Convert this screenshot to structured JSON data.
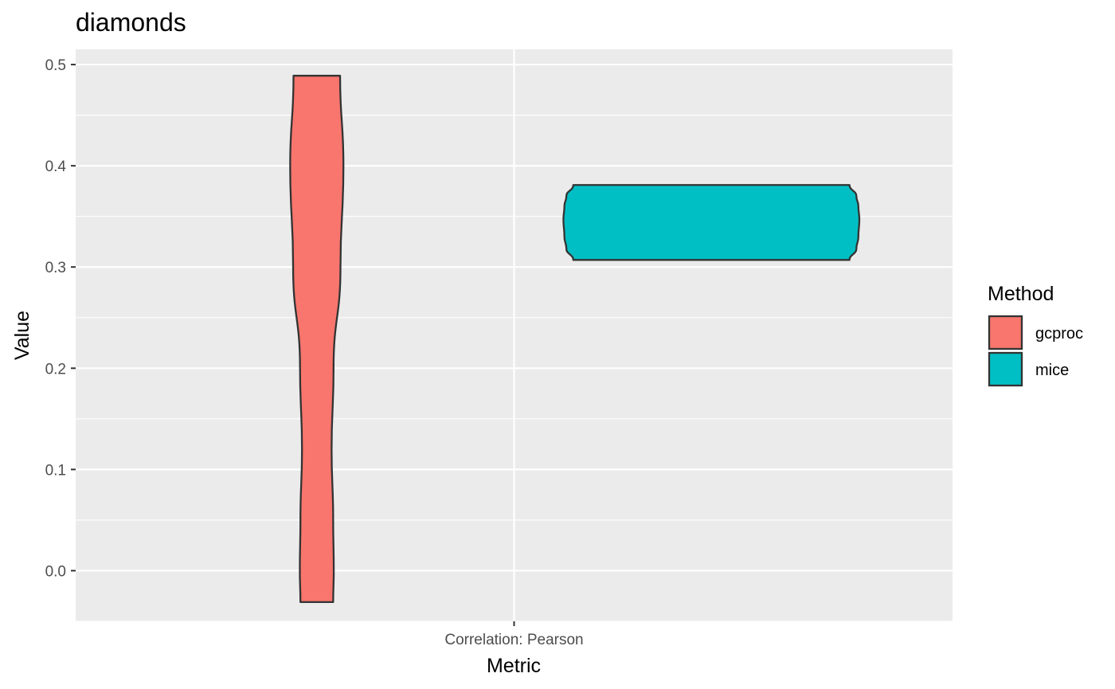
{
  "chart_data": {
    "type": "violin",
    "title": "diamonds",
    "xlabel": "Metric",
    "ylabel": "Value",
    "categories": [
      "Correlation: Pearson"
    ],
    "ylim": [
      -0.05,
      0.515
    ],
    "yticks": [
      "0.0",
      "0.1",
      "0.2",
      "0.3",
      "0.4",
      "0.5"
    ],
    "grid": true,
    "legend": {
      "title": "Method",
      "placement": "right",
      "entries": [
        "gcproc",
        "mice"
      ]
    },
    "series": [
      {
        "name": "gcproc",
        "color": "#F8766D",
        "min": -0.031,
        "max": 0.489,
        "max_width": 0.135,
        "profile": [
          [
            0.489,
            0.118
          ],
          [
            0.4,
            0.135
          ],
          [
            0.3,
            0.12
          ],
          [
            0.2,
            0.085
          ],
          [
            0.12,
            0.075
          ],
          [
            0.05,
            0.083
          ],
          [
            0.0,
            0.086
          ],
          [
            -0.031,
            0.083
          ]
        ]
      },
      {
        "name": "mice",
        "color": "#00BFC4",
        "min": 0.307,
        "max": 0.381,
        "max_width": 0.75,
        "profile": [
          [
            0.381,
            0.7
          ],
          [
            0.37,
            0.735
          ],
          [
            0.36,
            0.745
          ],
          [
            0.347,
            0.75
          ],
          [
            0.33,
            0.745
          ],
          [
            0.318,
            0.735
          ],
          [
            0.307,
            0.7
          ]
        ]
      }
    ]
  }
}
